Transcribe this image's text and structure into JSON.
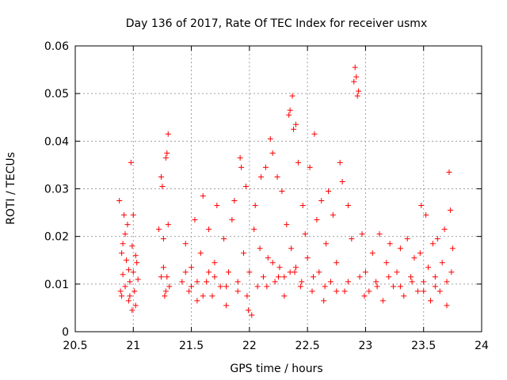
{
  "chart_data": {
    "type": "scatter",
    "title": "Day 136 of 2017, Rate Of TEC Index for receiver usmx",
    "xlabel": "GPS time / hours",
    "ylabel": "ROTI / TECUs",
    "xlim": [
      20.5,
      24
    ],
    "ylim": [
      0,
      0.06
    ],
    "xticks": [
      20.5,
      21,
      21.5,
      22,
      22.5,
      23,
      23.5,
      24
    ],
    "yticks": [
      0,
      0.01,
      0.02,
      0.03,
      0.04,
      0.05,
      0.06
    ],
    "xtick_labels": [
      "20.5",
      "21",
      "21.5",
      "22",
      "22.5",
      "23",
      "23.5",
      "24"
    ],
    "ytick_labels": [
      "0",
      "0.01",
      "0.02",
      "0.03",
      "0.04",
      "0.05",
      "0.06"
    ],
    "grid": true,
    "marker": "+",
    "color": "#ff0000",
    "series": [
      {
        "name": "ROTI",
        "points": [
          [
            20.88,
            0.0275
          ],
          [
            20.89,
            0.0085
          ],
          [
            20.9,
            0.0165
          ],
          [
            20.91,
            0.012
          ],
          [
            20.92,
            0.0245
          ],
          [
            20.93,
            0.0095
          ],
          [
            20.94,
            0.015
          ],
          [
            20.95,
            0.0225
          ],
          [
            20.96,
            0.0065
          ],
          [
            20.97,
            0.0105
          ],
          [
            20.98,
            0.0355
          ],
          [
            20.99,
            0.018
          ],
          [
            21.0,
            0.0245
          ],
          [
            21.01,
            0.0085
          ],
          [
            21.02,
            0.0055
          ],
          [
            21.03,
            0.0145
          ],
          [
            21.04,
            0.011
          ],
          [
            20.9,
            0.0075
          ],
          [
            20.93,
            0.0205
          ],
          [
            20.96,
            0.013
          ],
          [
            20.99,
            0.0045
          ],
          [
            21.02,
            0.016
          ],
          [
            20.91,
            0.0185
          ],
          [
            20.97,
            0.0075
          ],
          [
            21.0,
            0.0125
          ],
          [
            21.22,
            0.0215
          ],
          [
            21.24,
            0.0325
          ],
          [
            21.25,
            0.0305
          ],
          [
            21.26,
            0.0135
          ],
          [
            21.27,
            0.0075
          ],
          [
            21.28,
            0.0365
          ],
          [
            21.29,
            0.0375
          ],
          [
            21.3,
            0.0415
          ],
          [
            21.3,
            0.0225
          ],
          [
            21.31,
            0.0095
          ],
          [
            21.29,
            0.0115
          ],
          [
            21.26,
            0.0195
          ],
          [
            21.28,
            0.0085
          ],
          [
            21.24,
            0.0115
          ],
          [
            21.42,
            0.0105
          ],
          [
            21.45,
            0.0185
          ],
          [
            21.48,
            0.0085
          ],
          [
            21.5,
            0.0135
          ],
          [
            21.53,
            0.0235
          ],
          [
            21.55,
            0.0065
          ],
          [
            21.58,
            0.0165
          ],
          [
            21.6,
            0.0285
          ],
          [
            21.63,
            0.0105
          ],
          [
            21.65,
            0.0215
          ],
          [
            21.68,
            0.0075
          ],
          [
            21.7,
            0.0145
          ],
          [
            21.72,
            0.0265
          ],
          [
            21.75,
            0.0095
          ],
          [
            21.78,
            0.0195
          ],
          [
            21.8,
            0.0055
          ],
          [
            21.82,
            0.0125
          ],
          [
            21.85,
            0.0235
          ],
          [
            21.87,
            0.0275
          ],
          [
            21.9,
            0.0105
          ],
          [
            21.92,
            0.0365
          ],
          [
            21.93,
            0.0345
          ],
          [
            21.95,
            0.0165
          ],
          [
            21.97,
            0.0305
          ],
          [
            21.98,
            0.0075
          ],
          [
            21.99,
            0.0045
          ],
          [
            22.0,
            0.0125
          ],
          [
            22.02,
            0.0035
          ],
          [
            22.04,
            0.0215
          ],
          [
            22.05,
            0.0265
          ],
          [
            22.07,
            0.0095
          ],
          [
            22.09,
            0.0175
          ],
          [
            21.5,
            0.0095
          ],
          [
            21.6,
            0.0075
          ],
          [
            21.7,
            0.0115
          ],
          [
            21.8,
            0.0095
          ],
          [
            21.9,
            0.0085
          ],
          [
            21.45,
            0.0125
          ],
          [
            21.55,
            0.0105
          ],
          [
            21.65,
            0.0125
          ],
          [
            22.1,
            0.0325
          ],
          [
            22.12,
            0.0115
          ],
          [
            22.14,
            0.0345
          ],
          [
            22.16,
            0.0155
          ],
          [
            22.18,
            0.0405
          ],
          [
            22.2,
            0.0375
          ],
          [
            22.22,
            0.0105
          ],
          [
            22.24,
            0.0325
          ],
          [
            22.26,
            0.0135
          ],
          [
            22.28,
            0.0295
          ],
          [
            22.3,
            0.0075
          ],
          [
            22.32,
            0.0225
          ],
          [
            22.34,
            0.0455
          ],
          [
            22.35,
            0.0465
          ],
          [
            22.36,
            0.0175
          ],
          [
            22.37,
            0.0495
          ],
          [
            22.38,
            0.0425
          ],
          [
            22.39,
            0.0125
          ],
          [
            22.4,
            0.0435
          ],
          [
            22.42,
            0.0355
          ],
          [
            22.44,
            0.0095
          ],
          [
            22.46,
            0.0265
          ],
          [
            22.48,
            0.0205
          ],
          [
            22.5,
            0.0155
          ],
          [
            22.52,
            0.0345
          ],
          [
            22.54,
            0.0085
          ],
          [
            22.56,
            0.0415
          ],
          [
            22.58,
            0.0235
          ],
          [
            22.6,
            0.0125
          ],
          [
            22.62,
            0.0275
          ],
          [
            22.64,
            0.0065
          ],
          [
            22.66,
            0.0185
          ],
          [
            22.68,
            0.0295
          ],
          [
            22.7,
            0.0105
          ],
          [
            22.72,
            0.0245
          ],
          [
            22.75,
            0.0145
          ],
          [
            22.78,
            0.0355
          ],
          [
            22.8,
            0.0315
          ],
          [
            22.82,
            0.0085
          ],
          [
            22.85,
            0.0265
          ],
          [
            22.88,
            0.0195
          ],
          [
            22.9,
            0.0525
          ],
          [
            22.91,
            0.0555
          ],
          [
            22.92,
            0.0535
          ],
          [
            22.93,
            0.0495
          ],
          [
            22.94,
            0.0505
          ],
          [
            22.95,
            0.0115
          ],
          [
            22.97,
            0.0205
          ],
          [
            22.99,
            0.0075
          ],
          [
            22.15,
            0.0095
          ],
          [
            22.25,
            0.0115
          ],
          [
            22.35,
            0.0125
          ],
          [
            22.45,
            0.0105
          ],
          [
            22.55,
            0.0115
          ],
          [
            22.65,
            0.0095
          ],
          [
            22.75,
            0.0085
          ],
          [
            22.85,
            0.0105
          ],
          [
            22.2,
            0.0145
          ],
          [
            22.3,
            0.0115
          ],
          [
            22.4,
            0.0135
          ],
          [
            23.0,
            0.0125
          ],
          [
            23.03,
            0.0085
          ],
          [
            23.06,
            0.0165
          ],
          [
            23.09,
            0.0105
          ],
          [
            23.12,
            0.0205
          ],
          [
            23.15,
            0.0065
          ],
          [
            23.18,
            0.0145
          ],
          [
            23.21,
            0.0185
          ],
          [
            23.24,
            0.0095
          ],
          [
            23.27,
            0.0125
          ],
          [
            23.3,
            0.0175
          ],
          [
            23.33,
            0.0075
          ],
          [
            23.36,
            0.0195
          ],
          [
            23.39,
            0.0115
          ],
          [
            23.42,
            0.0155
          ],
          [
            23.45,
            0.0085
          ],
          [
            23.47,
            0.0165
          ],
          [
            23.48,
            0.0265
          ],
          [
            23.5,
            0.0105
          ],
          [
            23.52,
            0.0245
          ],
          [
            23.54,
            0.0135
          ],
          [
            23.56,
            0.0065
          ],
          [
            23.58,
            0.0185
          ],
          [
            23.6,
            0.0115
          ],
          [
            23.62,
            0.0195
          ],
          [
            23.64,
            0.0085
          ],
          [
            23.66,
            0.0145
          ],
          [
            23.68,
            0.0215
          ],
          [
            23.7,
            0.0055
          ],
          [
            23.72,
            0.0335
          ],
          [
            23.73,
            0.0255
          ],
          [
            23.74,
            0.0125
          ],
          [
            23.75,
            0.0175
          ],
          [
            23.1,
            0.0095
          ],
          [
            23.2,
            0.0115
          ],
          [
            23.3,
            0.0095
          ],
          [
            23.4,
            0.0105
          ],
          [
            23.5,
            0.0085
          ],
          [
            23.6,
            0.0095
          ],
          [
            23.7,
            0.0105
          ]
        ]
      }
    ]
  }
}
